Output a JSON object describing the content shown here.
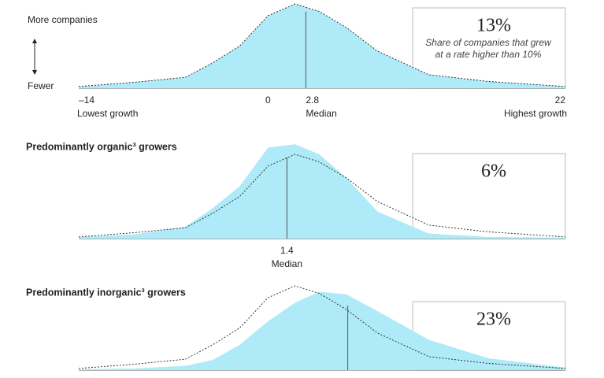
{
  "chart_data": [
    {
      "type": "area",
      "y_top_label": "More companies",
      "y_bottom_label": "Fewer",
      "x": [
        -14,
        -9.9,
        -6.1,
        -4.1,
        -2.1,
        0,
        2,
        3.8,
        5.8,
        8.1,
        11.9,
        16.3,
        22
      ],
      "xlim": [
        -14,
        22
      ],
      "ylim": [
        0,
        100
      ],
      "xticks": [
        {
          "value": -14,
          "label": "–14"
        },
        0,
        22
      ],
      "x_low_label": "Lowest growth",
      "x_high_label": "Highest growth",
      "median": {
        "value": 2.8,
        "label": "2.8"
      },
      "median_label": "Median",
      "stat": "13%",
      "stat_note": [
        "Share of companies that grew",
        "at a rate higher than 10%"
      ],
      "series": [
        {
          "style": "area",
          "color": "#aeeaf8",
          "values": [
            2,
            7,
            13,
            30,
            50,
            86,
            100,
            91,
            72,
            44,
            16,
            8,
            2
          ]
        },
        {
          "style": "dashed",
          "color": "#222222",
          "values": [
            2,
            7,
            13,
            30,
            50,
            86,
            100,
            91,
            72,
            44,
            16,
            8,
            2
          ]
        }
      ]
    },
    {
      "type": "area",
      "title": "Predominantly organic³ growers",
      "x": [
        -14,
        -9.9,
        -6.1,
        -4.1,
        -2.1,
        0,
        2,
        3.8,
        5.8,
        8.1,
        11.9,
        16.3,
        22
      ],
      "xlim": [
        -14,
        22
      ],
      "ylim": [
        0,
        100
      ],
      "median": {
        "value": 1.4,
        "label": "1.4"
      },
      "median_label": "Median",
      "stat": "6%",
      "series": [
        {
          "style": "area",
          "color": "#aeeaf8",
          "values": [
            2,
            5,
            14,
            36,
            62,
            108,
            112,
            100,
            72,
            32,
            6,
            2,
            1
          ]
        },
        {
          "style": "dashed",
          "color": "#222222",
          "values": [
            2,
            7,
            13,
            30,
            50,
            86,
            100,
            91,
            72,
            44,
            16,
            8,
            2
          ]
        }
      ]
    },
    {
      "type": "area",
      "title": "Predominantly inorganic³ growers",
      "x": [
        -14,
        -9.9,
        -6.1,
        -4.1,
        -2.1,
        0,
        2,
        3.8,
        5.8,
        8.1,
        11.9,
        16.3,
        22
      ],
      "xlim": [
        -14,
        22
      ],
      "ylim": [
        0,
        100
      ],
      "median": {
        "value": 5.9
      },
      "stat": "23%",
      "series": [
        {
          "style": "area",
          "color": "#aeeaf8",
          "values": [
            1,
            2,
            5,
            12,
            30,
            58,
            80,
            93,
            90,
            70,
            36,
            14,
            3
          ]
        },
        {
          "style": "dashed",
          "color": "#222222",
          "values": [
            2,
            7,
            13,
            30,
            50,
            86,
            100,
            91,
            72,
            44,
            16,
            8,
            2
          ]
        }
      ]
    }
  ]
}
